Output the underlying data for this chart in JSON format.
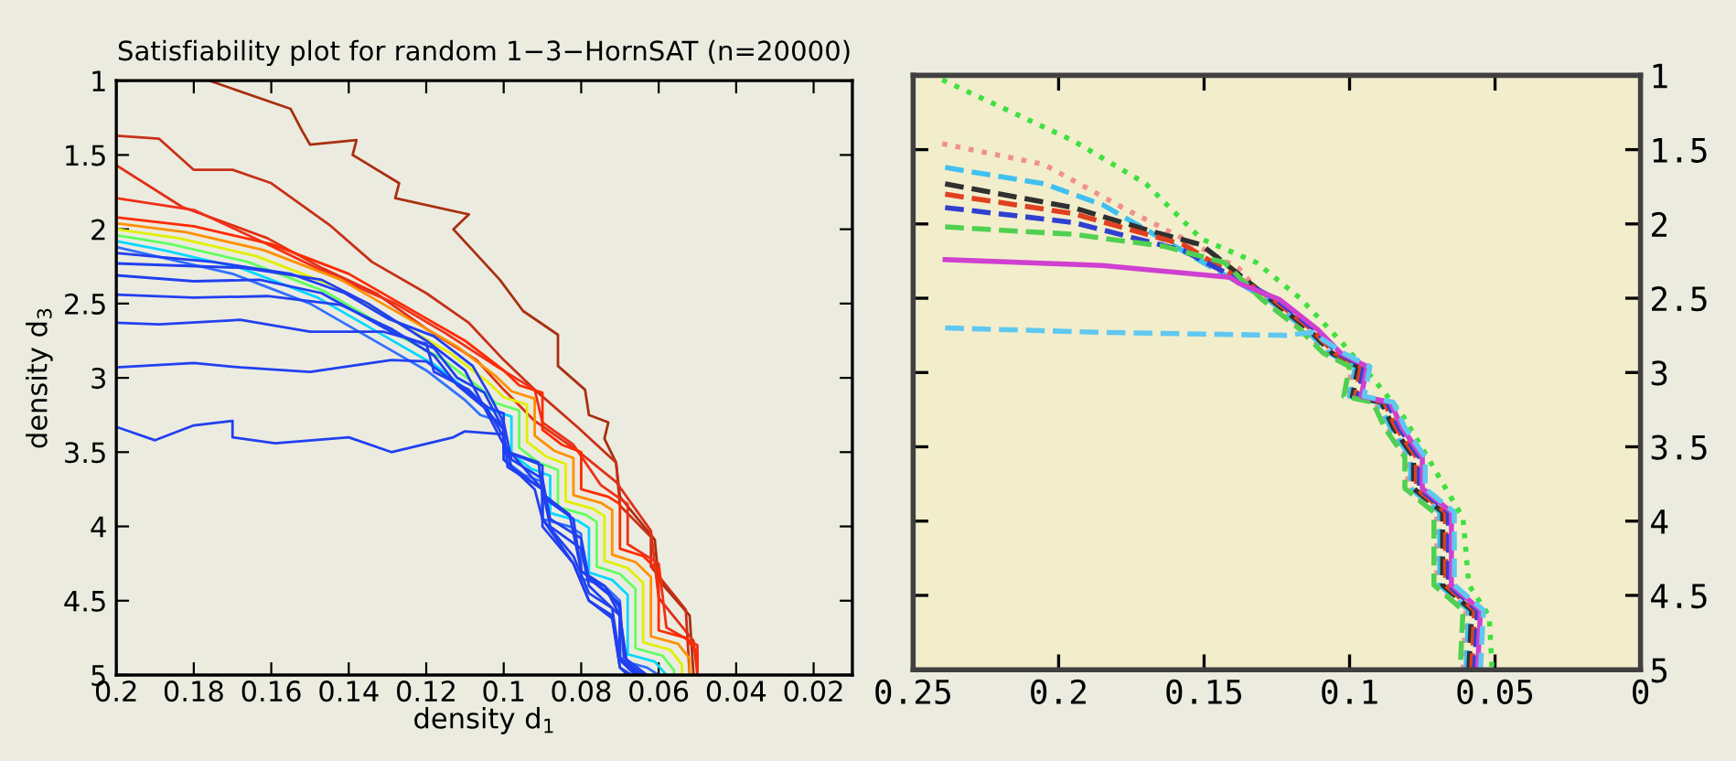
{
  "chart_data": [
    {
      "type": "line",
      "title": "Satisfiability plot for random 1−3−HornSAT (n=20000)",
      "xlabel": "density d$_{1}$",
      "ylabel": "density d$_{3}$",
      "xlim": [
        0.2,
        0.01
      ],
      "ylim": [
        5,
        1
      ],
      "xticks": [
        0.2,
        0.18,
        0.16,
        0.14,
        0.12,
        0.1,
        0.08,
        0.06,
        0.04,
        0.02
      ],
      "yticks": [
        1,
        1.5,
        2,
        2.5,
        3,
        3.5,
        4,
        4.5,
        5
      ],
      "grid": false,
      "legend": false,
      "line_style": "solid",
      "series": [
        {
          "color": "#a83010",
          "x": [
            0.176,
            0.155,
            0.152,
            0.15,
            0.138,
            0.139,
            0.127,
            0.128,
            0.109,
            0.113,
            0.101,
            0.095,
            0.086,
            0.086,
            0.079,
            0.078,
            0.073,
            0.074,
            0.071,
            0.07,
            0.061,
            0.06,
            0.052,
            0.051
          ],
          "values": [
            1.0,
            1.19,
            1.34,
            1.43,
            1.4,
            1.5,
            1.69,
            1.79,
            1.9,
            2.0,
            2.34,
            2.55,
            2.71,
            2.92,
            3.08,
            3.25,
            3.3,
            3.41,
            3.57,
            3.8,
            4.09,
            4.36,
            4.6,
            5.0
          ]
        },
        {
          "color": "#c83018",
          "x": [
            0.2,
            0.189,
            0.18,
            0.17,
            0.16,
            0.145,
            0.134,
            0.12,
            0.109,
            0.1,
            0.092,
            0.081,
            0.071,
            0.07,
            0.062,
            0.062,
            0.053,
            0.052
          ],
          "values": [
            1.37,
            1.39,
            1.6,
            1.6,
            1.69,
            1.97,
            2.22,
            2.43,
            2.63,
            2.88,
            3.08,
            3.33,
            3.57,
            3.86,
            4.07,
            4.27,
            4.56,
            5.0
          ]
        },
        {
          "color": "#e03018",
          "x": [
            0.2,
            0.183,
            0.161,
            0.147,
            0.133,
            0.12,
            0.107,
            0.1,
            0.092,
            0.081,
            0.071,
            0.062,
            0.06,
            0.051,
            0.05
          ],
          "values": [
            1.57,
            1.85,
            2.06,
            2.26,
            2.43,
            2.67,
            2.88,
            3.08,
            3.29,
            3.49,
            3.7,
            4.03,
            4.48,
            4.77,
            5.0
          ]
        },
        {
          "color": "#f03018",
          "x": [
            0.2,
            0.18,
            0.161,
            0.142,
            0.128,
            0.115,
            0.102,
            0.092,
            0.09,
            0.082,
            0.075,
            0.068,
            0.068,
            0.06,
            0.058,
            0.05,
            0.05
          ],
          "values": [
            1.79,
            1.87,
            2.1,
            2.34,
            2.5,
            2.7,
            2.92,
            3.08,
            3.3,
            3.45,
            3.72,
            3.85,
            4.12,
            4.25,
            4.68,
            4.8,
            5.0
          ]
        },
        {
          "color": "#ff2a00",
          "x": [
            0.2,
            0.18,
            0.16,
            0.14,
            0.12,
            0.11,
            0.1,
            0.096,
            0.09,
            0.09,
            0.085,
            0.08,
            0.08,
            0.073,
            0.07,
            0.07,
            0.064,
            0.06,
            0.06,
            0.053,
            0.05,
            0.05
          ],
          "values": [
            1.92,
            1.98,
            2.1,
            2.3,
            2.6,
            2.75,
            2.95,
            3.05,
            3.1,
            3.35,
            3.45,
            3.5,
            3.75,
            3.8,
            3.85,
            4.15,
            4.2,
            4.3,
            4.7,
            4.75,
            4.85,
            5.0
          ]
        },
        {
          "color": "#ff9000",
          "x": [
            0.2,
            0.182,
            0.162,
            0.142,
            0.122,
            0.112,
            0.102,
            0.098,
            0.092,
            0.092,
            0.087,
            0.082,
            0.082,
            0.075,
            0.072,
            0.072,
            0.066,
            0.062,
            0.062,
            0.055,
            0.052,
            0.052
          ],
          "values": [
            1.96,
            2.02,
            2.14,
            2.34,
            2.64,
            2.79,
            2.99,
            3.09,
            3.14,
            3.39,
            3.49,
            3.54,
            3.79,
            3.84,
            3.89,
            4.19,
            4.24,
            4.34,
            4.74,
            4.79,
            4.89,
            5.0
          ]
        },
        {
          "color": "#e0f000",
          "x": [
            0.2,
            0.184,
            0.164,
            0.144,
            0.124,
            0.114,
            0.104,
            0.1,
            0.094,
            0.094,
            0.089,
            0.084,
            0.084,
            0.077,
            0.074,
            0.074,
            0.068,
            0.064,
            0.064,
            0.057,
            0.054,
            0.054
          ],
          "values": [
            2.0,
            2.06,
            2.18,
            2.38,
            2.68,
            2.83,
            3.03,
            3.13,
            3.18,
            3.43,
            3.53,
            3.58,
            3.83,
            3.88,
            3.93,
            4.23,
            4.28,
            4.38,
            4.78,
            4.83,
            4.93,
            5.0
          ]
        },
        {
          "color": "#60ff60",
          "x": [
            0.2,
            0.186,
            0.166,
            0.146,
            0.126,
            0.116,
            0.106,
            0.102,
            0.096,
            0.096,
            0.091,
            0.086,
            0.086,
            0.079,
            0.076,
            0.076,
            0.07,
            0.066,
            0.066,
            0.059,
            0.056,
            0.056
          ],
          "values": [
            2.04,
            2.1,
            2.22,
            2.42,
            2.73,
            2.87,
            3.07,
            3.17,
            3.22,
            3.47,
            3.57,
            3.62,
            3.87,
            3.92,
            3.97,
            4.27,
            4.32,
            4.42,
            4.82,
            4.87,
            4.97,
            5.0
          ]
        },
        {
          "color": "#00d8ff",
          "x": [
            0.2,
            0.188,
            0.168,
            0.148,
            0.128,
            0.118,
            0.108,
            0.104,
            0.098,
            0.098,
            0.093,
            0.088,
            0.088,
            0.081,
            0.078,
            0.078,
            0.072,
            0.068,
            0.068,
            0.061,
            0.058
          ],
          "values": [
            2.08,
            2.14,
            2.26,
            2.46,
            2.76,
            2.91,
            3.11,
            3.21,
            3.26,
            3.51,
            3.61,
            3.66,
            3.91,
            3.96,
            4.01,
            4.31,
            4.36,
            4.46,
            4.86,
            4.91,
            5.0
          ]
        },
        {
          "color": "#3070ff",
          "x": [
            0.2,
            0.19,
            0.17,
            0.15,
            0.13,
            0.12,
            0.11,
            0.106,
            0.1,
            0.1,
            0.095,
            0.09,
            0.09,
            0.083,
            0.08,
            0.08,
            0.074,
            0.07,
            0.07,
            0.063,
            0.06
          ],
          "values": [
            2.12,
            2.18,
            2.3,
            2.5,
            2.8,
            2.95,
            3.15,
            3.25,
            3.3,
            3.55,
            3.65,
            3.7,
            3.95,
            4.0,
            4.05,
            4.35,
            4.4,
            4.5,
            4.9,
            4.95,
            5.0
          ]
        },
        {
          "color": "#2040f0",
          "x": [
            0.2,
            0.175,
            0.155,
            0.141,
            0.13,
            0.118,
            0.108,
            0.104,
            0.1,
            0.098,
            0.09,
            0.088,
            0.08,
            0.078,
            0.07,
            0.069,
            0.063
          ],
          "values": [
            2.16,
            2.22,
            2.3,
            2.43,
            2.6,
            2.72,
            2.92,
            3.1,
            3.3,
            3.55,
            3.68,
            3.95,
            4.08,
            4.35,
            4.52,
            4.88,
            5.0
          ]
        },
        {
          "color": "#2040f0",
          "x": [
            0.2,
            0.167,
            0.147,
            0.135,
            0.12,
            0.11,
            0.105,
            0.1,
            0.099,
            0.09,
            0.088,
            0.08,
            0.078,
            0.07,
            0.068,
            0.065
          ],
          "values": [
            2.23,
            2.26,
            2.34,
            2.5,
            2.75,
            2.95,
            3.2,
            3.35,
            3.6,
            3.75,
            4.0,
            4.15,
            4.4,
            4.6,
            4.95,
            5.0
          ]
        },
        {
          "color": "#2040f0",
          "x": [
            0.2,
            0.18,
            0.163,
            0.147,
            0.129,
            0.118,
            0.112,
            0.105,
            0.1,
            0.1,
            0.092,
            0.09,
            0.082,
            0.078,
            0.072,
            0.07,
            0.066
          ],
          "values": [
            2.31,
            2.35,
            2.34,
            2.43,
            2.69,
            2.8,
            3.0,
            3.1,
            3.35,
            3.55,
            3.75,
            3.95,
            4.2,
            4.45,
            4.55,
            4.9,
            5.0
          ]
        },
        {
          "color": "#2040f0",
          "x": [
            0.2,
            0.18,
            0.161,
            0.142,
            0.129,
            0.118,
            0.112,
            0.105,
            0.1,
            0.095,
            0.09,
            0.09,
            0.082,
            0.078,
            0.072,
            0.07,
            0.067
          ],
          "values": [
            2.44,
            2.46,
            2.45,
            2.51,
            2.67,
            2.85,
            3.05,
            3.2,
            3.45,
            3.6,
            3.75,
            3.95,
            4.25,
            4.5,
            4.6,
            4.95,
            5.0
          ]
        },
        {
          "color": "#2040f0",
          "x": [
            0.2,
            0.189,
            0.168,
            0.15,
            0.131,
            0.12,
            0.118,
            0.109,
            0.104,
            0.1,
            0.098,
            0.09,
            0.09,
            0.082,
            0.078,
            0.072,
            0.07,
            0.068
          ],
          "values": [
            2.63,
            2.64,
            2.61,
            2.69,
            2.69,
            2.77,
            2.96,
            3.08,
            3.22,
            3.4,
            3.6,
            3.75,
            4.0,
            4.25,
            4.5,
            4.62,
            4.95,
            5.0
          ]
        },
        {
          "color": "#2040f0",
          "x": [
            0.2,
            0.18,
            0.168,
            0.15,
            0.129,
            0.12,
            0.109,
            0.104,
            0.1,
            0.1,
            0.091,
            0.09,
            0.083,
            0.08,
            0.074,
            0.07,
            0.07,
            0.064
          ],
          "values": [
            2.93,
            2.9,
            2.93,
            2.96,
            2.88,
            2.89,
            3.1,
            3.2,
            3.24,
            3.49,
            3.57,
            3.78,
            3.92,
            4.3,
            4.4,
            4.55,
            4.9,
            5.0
          ]
        },
        {
          "color": "#2040f0",
          "x": [
            0.2,
            0.19,
            0.18,
            0.17,
            0.17,
            0.159,
            0.14,
            0.129,
            0.113,
            0.11,
            0.1,
            0.1,
            0.09,
            0.09,
            0.082,
            0.08,
            0.073,
            0.07,
            0.07,
            0.064
          ],
          "values": [
            3.33,
            3.42,
            3.32,
            3.29,
            3.4,
            3.44,
            3.4,
            3.5,
            3.4,
            3.36,
            3.38,
            3.49,
            3.59,
            3.8,
            3.95,
            4.3,
            4.45,
            4.6,
            4.88,
            5.0
          ]
        }
      ]
    },
    {
      "type": "line",
      "xlim": [
        0.25,
        0
      ],
      "ylim": [
        5,
        1
      ],
      "xticks": [
        0.25,
        0.2,
        0.15,
        0.1,
        0.05,
        0
      ],
      "yticks": [
        1,
        1.5,
        2,
        2.5,
        3,
        3.5,
        4,
        4.5,
        5
      ],
      "grid": false,
      "legend": false,
      "series": [
        {
          "color": "#40e040",
          "line_style": "dotted",
          "x": [
            0.24,
            0.195,
            0.17,
            0.151,
            0.132,
            0.117,
            0.103,
            0.092,
            0.082,
            0.072,
            0.061,
            0.059,
            0.052,
            0.051
          ],
          "values": [
            1.03,
            1.44,
            1.73,
            2.1,
            2.26,
            2.5,
            2.79,
            3.04,
            3.28,
            3.61,
            3.98,
            4.43,
            4.64,
            5.0
          ]
        },
        {
          "color": "#f09090",
          "line_style": "dotted",
          "x": [
            0.24,
            0.205,
            0.178,
            0.157,
            0.138,
            0.129,
            0.116,
            0.108,
            0.099,
            0.101,
            0.091,
            0.087,
            0.08,
            0.08,
            0.07,
            0.07,
            0.06,
            0.061
          ],
          "values": [
            1.46,
            1.6,
            1.89,
            2.1,
            2.3,
            2.51,
            2.71,
            2.87,
            2.96,
            3.16,
            3.2,
            3.37,
            3.57,
            3.78,
            3.94,
            4.43,
            4.6,
            5.0
          ]
        },
        {
          "color": "#40c0f0",
          "line_style": "dashed",
          "x": [
            0.239,
            0.205,
            0.185,
            0.128,
            0.115,
            0.107,
            0.098,
            0.1,
            0.09,
            0.086,
            0.079,
            0.079,
            0.069,
            0.069,
            0.059,
            0.06
          ],
          "values": [
            1.62,
            1.73,
            1.87,
            2.51,
            2.71,
            2.87,
            2.96,
            3.16,
            3.2,
            3.37,
            3.57,
            3.78,
            3.94,
            4.43,
            4.6,
            5.0
          ]
        },
        {
          "color": "#303030",
          "line_style": "dashed",
          "x": [
            0.239,
            0.195,
            0.168,
            0.151,
            0.127,
            0.114,
            0.106,
            0.097,
            0.099,
            0.089,
            0.085,
            0.078,
            0.078,
            0.068,
            0.068,
            0.058,
            0.059
          ],
          "values": [
            1.73,
            1.89,
            2.05,
            2.14,
            2.51,
            2.71,
            2.87,
            2.96,
            3.16,
            3.2,
            3.37,
            3.57,
            3.78,
            3.94,
            4.43,
            4.6,
            5.0
          ]
        },
        {
          "color": "#e04020",
          "line_style": "dashed",
          "x": [
            0.239,
            0.195,
            0.157,
            0.126,
            0.113,
            0.105,
            0.096,
            0.098,
            0.088,
            0.084,
            0.077,
            0.077,
            0.067,
            0.067,
            0.057,
            0.058
          ],
          "values": [
            1.8,
            1.93,
            2.14,
            2.51,
            2.71,
            2.87,
            2.96,
            3.16,
            3.2,
            3.37,
            3.57,
            3.78,
            3.94,
            4.43,
            4.6,
            5.0
          ]
        },
        {
          "color": "#3040d0",
          "line_style": "dashed",
          "x": [
            0.239,
            0.195,
            0.157,
            0.125,
            0.112,
            0.104,
            0.095,
            0.097,
            0.087,
            0.083,
            0.076,
            0.076,
            0.066,
            0.066,
            0.056,
            0.057
          ],
          "values": [
            1.89,
            1.99,
            2.18,
            2.51,
            2.71,
            2.87,
            2.96,
            3.16,
            3.2,
            3.37,
            3.57,
            3.78,
            3.94,
            4.43,
            4.6,
            5.0
          ]
        },
        {
          "color": "#50d050",
          "line_style": "dashed",
          "x": [
            0.239,
            0.195,
            0.164,
            0.143,
            0.13,
            0.117,
            0.109,
            0.1,
            0.102,
            0.092,
            0.088,
            0.081,
            0.081,
            0.071,
            0.071,
            0.061,
            0.062
          ],
          "values": [
            2.02,
            2.07,
            2.15,
            2.26,
            2.51,
            2.71,
            2.87,
            2.96,
            3.16,
            3.2,
            3.37,
            3.57,
            3.78,
            3.94,
            4.43,
            4.6,
            5.0
          ]
        },
        {
          "color": "#d040d0",
          "line_style": "solid",
          "x": [
            0.239,
            0.185,
            0.141,
            0.138,
            0.124,
            0.111,
            0.103,
            0.094,
            0.096,
            0.086,
            0.082,
            0.075,
            0.075,
            0.065,
            0.065,
            0.055,
            0.056
          ],
          "values": [
            2.24,
            2.28,
            2.36,
            2.4,
            2.51,
            2.71,
            2.87,
            2.96,
            3.16,
            3.2,
            3.37,
            3.57,
            3.78,
            3.94,
            4.43,
            4.6,
            5.0
          ]
        },
        {
          "color": "#60c8f0",
          "line_style": "dashed",
          "x": [
            0.239,
            0.185,
            0.122,
            0.113,
            0.102,
            0.093,
            0.095,
            0.085,
            0.081,
            0.074,
            0.074,
            0.064,
            0.064,
            0.054,
            0.055
          ],
          "values": [
            2.7,
            2.73,
            2.75,
            2.73,
            2.87,
            2.96,
            3.16,
            3.2,
            3.37,
            3.57,
            3.78,
            3.94,
            4.43,
            4.6,
            5.0
          ]
        }
      ]
    }
  ]
}
